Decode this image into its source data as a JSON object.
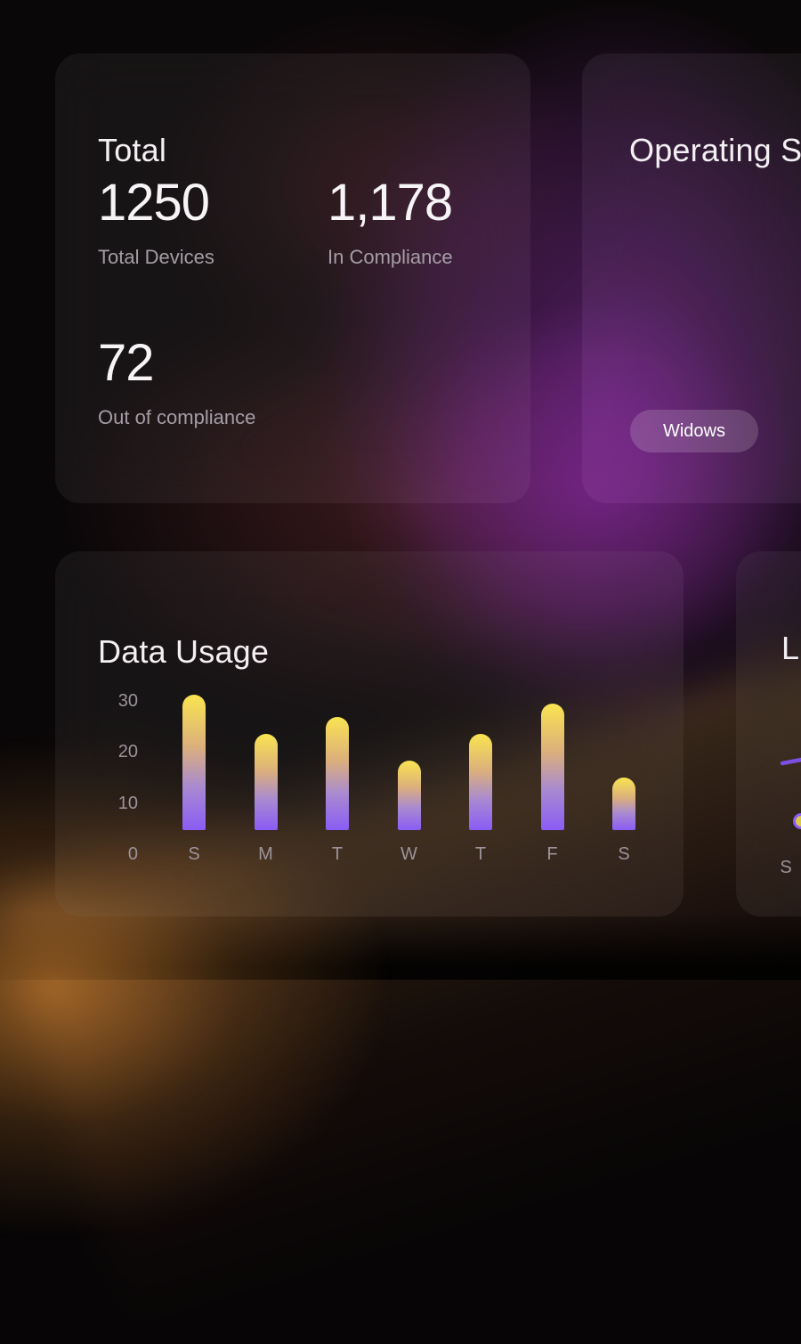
{
  "cards": {
    "total": {
      "title": "Total",
      "stats": [
        {
          "value": "1250",
          "label": "Total Devices"
        },
        {
          "value": "1,178",
          "label": "In Compliance"
        },
        {
          "value": "72",
          "label": "Out of compliance"
        }
      ]
    },
    "os": {
      "title": "Operating S",
      "badge": "Widows"
    },
    "data_usage": {
      "title": "Data Usage"
    },
    "line_card": {
      "title": "L"
    }
  },
  "chart_data": [
    {
      "type": "bar",
      "title": "Data Usage",
      "categories": [
        "S",
        "M",
        "T",
        "W",
        "T",
        "F",
        "S"
      ],
      "values": [
        31,
        22,
        26,
        16,
        22,
        29,
        12
      ],
      "y_ticks": [
        30,
        20,
        10
      ],
      "zero_label": "0",
      "xlabel": "",
      "ylabel": "",
      "ylim": [
        0,
        32
      ],
      "grid": false,
      "legend": false,
      "bar_gradient_top": "#f9e451",
      "bar_gradient_bottom": "#8a5cf5"
    },
    {
      "type": "line",
      "title": "L",
      "x_tick_labels": [
        "S"
      ],
      "line_color": "#7c4fe0"
    }
  ],
  "colors": {
    "accent_purple": "#8b5cf6",
    "bar_yellow": "#f9e451",
    "glow_purple": "#7c2c94",
    "glow_maroon": "#7e343a",
    "glow_orange": "#ee9436",
    "text_primary": "#f3eff3",
    "text_secondary": "#a59da5",
    "axis_text": "#9c939b"
  }
}
